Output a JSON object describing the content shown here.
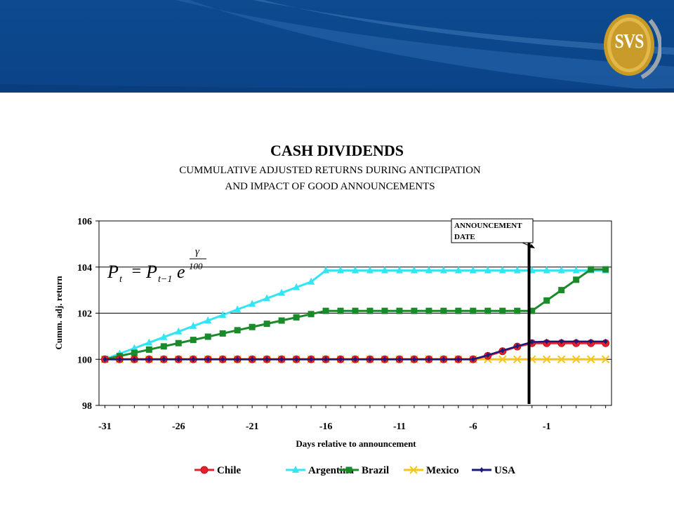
{
  "banner": {
    "logo_text": "SVS"
  },
  "chart_data": {
    "type": "line",
    "title": "CASH DIVIDENDS",
    "subtitle_lines": [
      "CUMMULATIVE ADJUSTED RETURNS DURING ANTICIPATION",
      "AND IMPACT OF GOOD ANNOUNCEMENTS"
    ],
    "xlabel": "Days relative to announcement",
    "ylabel": "Cumm. adj. return",
    "x": [
      -31,
      -30,
      -29,
      -28,
      -27,
      -26,
      -25,
      -24,
      -23,
      -22,
      -21,
      -20,
      -19,
      -18,
      -17,
      -16,
      -15,
      -14,
      -13,
      -12,
      -11,
      -10,
      -9,
      -8,
      -7,
      -6,
      -5,
      -4,
      -3,
      -2,
      -1,
      0,
      1,
      2,
      3
    ],
    "xlim": [
      -31.4,
      3.4
    ],
    "ylim": [
      98,
      106
    ],
    "x_ticks": [
      -31,
      -26,
      -21,
      -16,
      -11,
      -6,
      -1
    ],
    "y_ticks": [
      98,
      100,
      102,
      104,
      106
    ],
    "grid": "horizontal",
    "legend_position": "bottom",
    "series": [
      {
        "name": "Chile",
        "color": "#e8202a",
        "marker": "circle",
        "values": [
          100,
          100,
          100,
          100,
          100,
          100,
          100,
          100,
          100,
          100,
          100,
          100,
          100,
          100,
          100,
          100,
          100,
          100,
          100,
          100,
          100,
          100,
          100,
          100,
          100,
          100,
          100.15,
          100.35,
          100.55,
          100.7,
          100.7,
          100.7,
          100.7,
          100.7,
          100.7
        ]
      },
      {
        "name": "Argentina",
        "color": "#33e5f2",
        "marker": "triangle",
        "values": [
          100,
          100.24,
          100.48,
          100.72,
          100.96,
          101.2,
          101.44,
          101.68,
          101.92,
          102.16,
          102.4,
          102.64,
          102.88,
          103.12,
          103.36,
          103.85,
          103.85,
          103.85,
          103.85,
          103.85,
          103.85,
          103.85,
          103.85,
          103.85,
          103.85,
          103.85,
          103.85,
          103.85,
          103.85,
          103.85,
          103.85,
          103.85,
          103.85,
          103.85,
          103.85
        ]
      },
      {
        "name": "Brazil",
        "color": "#1a8a2a",
        "marker": "square",
        "values": [
          100,
          100.14,
          100.28,
          100.42,
          100.56,
          100.7,
          100.84,
          100.98,
          101.12,
          101.26,
          101.4,
          101.54,
          101.68,
          101.82,
          101.96,
          102.1,
          102.1,
          102.1,
          102.1,
          102.1,
          102.1,
          102.1,
          102.1,
          102.1,
          102.1,
          102.1,
          102.1,
          102.1,
          102.1,
          102.1,
          102.55,
          103.0,
          103.45,
          103.9,
          103.9
        ]
      },
      {
        "name": "Mexico",
        "color": "#f5c518",
        "marker": "x",
        "values": [
          100,
          100,
          100,
          100,
          100,
          100,
          100,
          100,
          100,
          100,
          100,
          100,
          100,
          100,
          100,
          100,
          100,
          100,
          100,
          100,
          100,
          100,
          100,
          100,
          100,
          100,
          100,
          100,
          100,
          100,
          100,
          100,
          100,
          100,
          100
        ]
      },
      {
        "name": "USA",
        "color": "#1a1a7a",
        "marker": "diamond",
        "values": [
          100,
          100,
          100,
          100,
          100,
          100,
          100,
          100,
          100,
          100,
          100,
          100,
          100,
          100,
          100,
          100,
          100,
          100,
          100,
          100,
          100,
          100,
          100,
          100,
          100,
          100,
          100.18,
          100.38,
          100.57,
          100.75,
          100.77,
          100.77,
          100.77,
          100.77,
          100.77
        ]
      }
    ],
    "annotations": {
      "announcement_label_lines": [
        "ANNOUNCEMENT",
        "DATE"
      ],
      "announcement_day": -2.2,
      "formula": {
        "lhs": "P",
        "lhs_sub": "t",
        "rhs": "P",
        "rhs_sub": "t−1",
        "base": "e",
        "exp_num": "γ",
        "exp_den": "100"
      }
    }
  }
}
